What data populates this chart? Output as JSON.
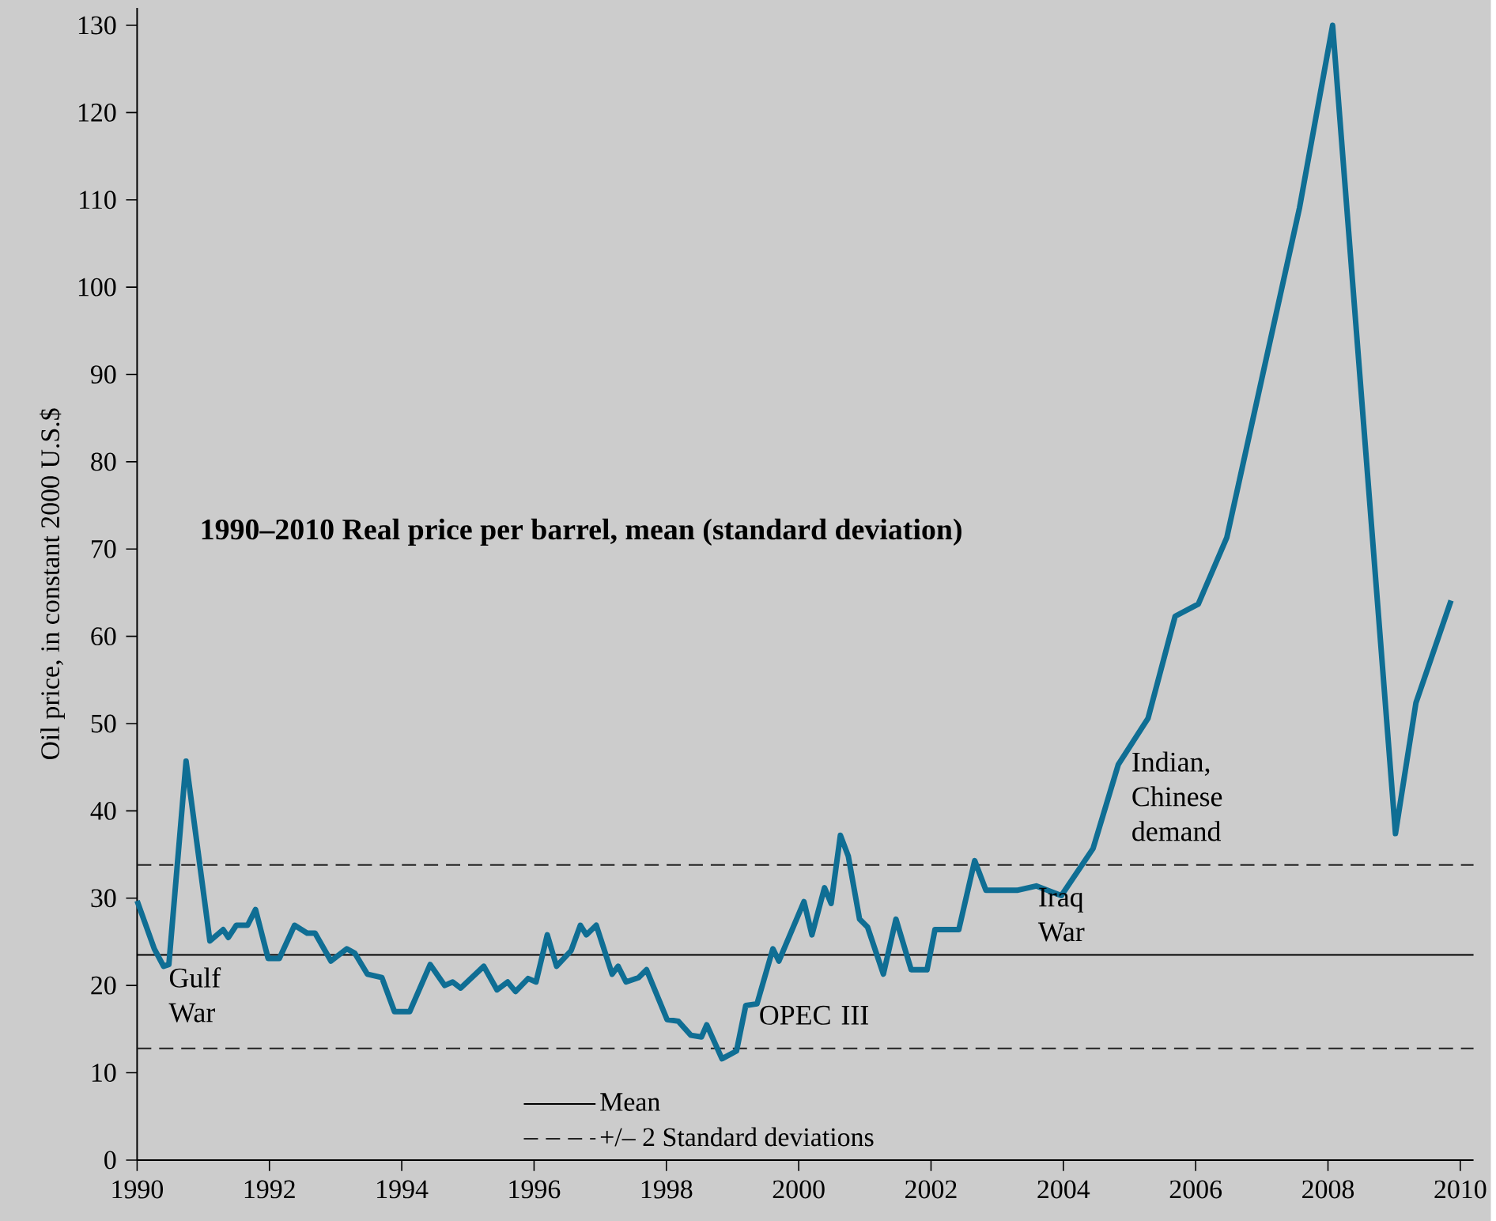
{
  "chart_data": {
    "type": "line",
    "title": "1990–2010 Real price per barrel, mean (standard deviation)",
    "ylabel": "Oil price, in constant 2000 U.S.$",
    "xlim": [
      1990,
      2010.2
    ],
    "ylim": [
      0,
      132
    ],
    "xticks": [
      1990,
      1992,
      1994,
      1996,
      1998,
      2000,
      2002,
      2004,
      2006,
      2008,
      2010
    ],
    "yticks": [
      0,
      10,
      20,
      30,
      40,
      50,
      60,
      70,
      80,
      90,
      100,
      110,
      120,
      130
    ],
    "grid": false,
    "legend": "bottom",
    "line_style": "solid",
    "marker": "none",
    "series": [
      {
        "color": "#0f6e94",
        "x": [
          1990.0,
          1990.26,
          1990.4,
          1990.48,
          1990.74,
          1991.1,
          1991.3,
          1991.38,
          1991.5,
          1991.67,
          1991.79,
          1991.98,
          1992.15,
          1992.38,
          1992.57,
          1992.69,
          1992.93,
          1993.17,
          1993.29,
          1993.48,
          1993.7,
          1993.89,
          1994.12,
          1994.43,
          1994.65,
          1994.77,
          1994.89,
          1995.24,
          1995.44,
          1995.6,
          1995.72,
          1995.91,
          1996.03,
          1996.2,
          1996.34,
          1996.56,
          1996.7,
          1996.79,
          1996.94,
          1997.18,
          1997.27,
          1997.39,
          1997.58,
          1997.7,
          1998.01,
          1998.18,
          1998.37,
          1998.53,
          1998.61,
          1998.84,
          1999.06,
          1999.2,
          1999.37,
          1999.61,
          1999.7,
          2000.08,
          2000.2,
          2000.39,
          2000.49,
          2000.63,
          2000.75,
          2000.92,
          2001.04,
          2001.28,
          2001.47,
          2001.7,
          2001.94,
          2002.06,
          2002.42,
          2002.66,
          2002.83,
          2003.3,
          2003.59,
          2003.97,
          2004.45,
          2004.83,
          2005.28,
          2005.69,
          2006.04,
          2006.47,
          2007.57,
          2008.07,
          2009.02,
          2009.33,
          2009.86
        ],
        "values": [
          29.7,
          24.2,
          22.2,
          22.4,
          45.7,
          25.1,
          26.4,
          25.5,
          26.9,
          26.9,
          28.7,
          23.1,
          23.1,
          26.9,
          26.0,
          26.0,
          22.8,
          24.2,
          23.7,
          21.3,
          20.9,
          17.0,
          17.0,
          22.4,
          20.0,
          20.4,
          19.7,
          22.2,
          19.5,
          20.4,
          19.3,
          20.8,
          20.4,
          25.8,
          22.2,
          24.0,
          26.9,
          25.8,
          26.9,
          21.3,
          22.2,
          20.4,
          20.9,
          21.8,
          16.1,
          15.9,
          14.3,
          14.1,
          15.5,
          11.6,
          12.5,
          17.7,
          17.9,
          24.2,
          22.8,
          29.6,
          25.8,
          31.2,
          29.4,
          37.2,
          34.8,
          27.6,
          26.7,
          21.3,
          27.6,
          21.8,
          21.8,
          26.4,
          26.4,
          34.3,
          30.9,
          30.9,
          31.4,
          30.3,
          35.7,
          45.3,
          50.6,
          62.3,
          63.7,
          71.3,
          109.1,
          130.0,
          37.4,
          52.4,
          64.1
        ]
      }
    ],
    "ref_lines": [
      {
        "axis": "y",
        "value": 23.5,
        "label": "Mean",
        "color": "#000000",
        "line_style": "solid"
      },
      {
        "axis": "y",
        "value": 33.8,
        "label": "+/– 2 Standard deviations",
        "color": "#222222",
        "line_style": "dashed"
      },
      {
        "axis": "y",
        "value": 12.8,
        "color": "#222222",
        "line_style": "dashed"
      }
    ],
    "annotations": [
      {
        "text": "Gulf War",
        "x": 1990.45,
        "y": 22.3
      },
      {
        "text": "OPEC III",
        "x": 1999.37,
        "y": 17.9
      },
      {
        "text": "Iraq War",
        "x": 2003.59,
        "y": 31.4
      },
      {
        "text": "Indian, Chinese demand",
        "x": 2005.0,
        "y": 47.0
      }
    ]
  }
}
